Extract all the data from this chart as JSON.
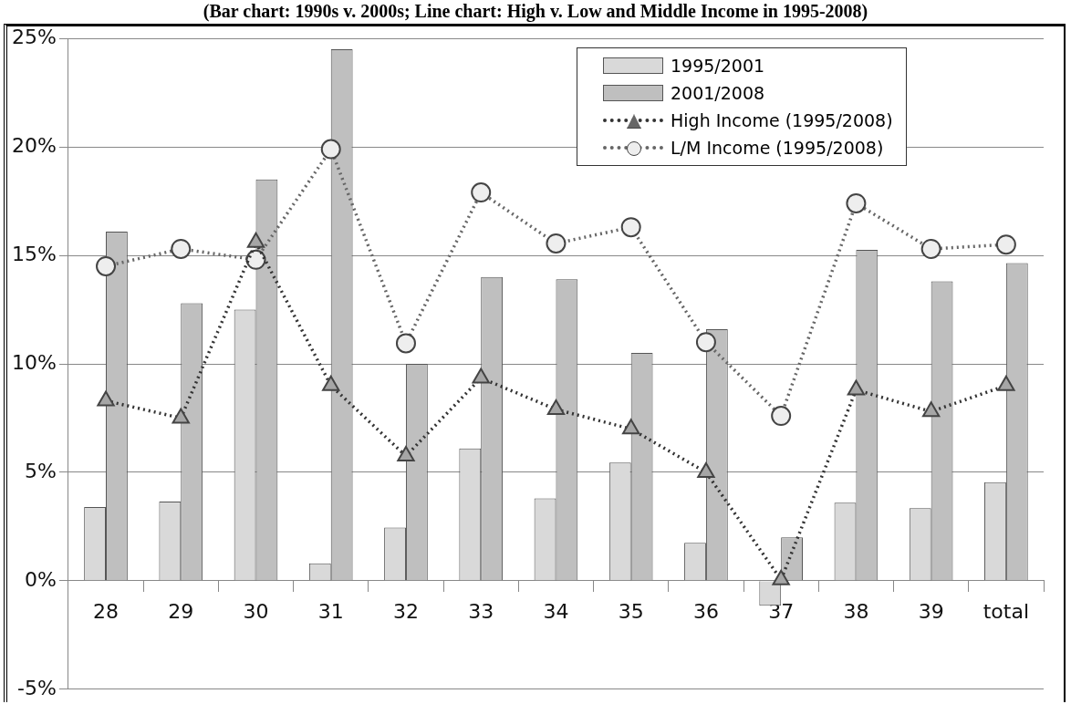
{
  "chart_data": {
    "type": "bar",
    "title": "(Bar chart: 1990s v. 2000s; Line chart: High v. Low and Middle Income in 1995-2008)",
    "categories": [
      "28",
      "29",
      "30",
      "31",
      "32",
      "33",
      "34",
      "35",
      "36",
      "37",
      "38",
      "39",
      "total"
    ],
    "series": [
      {
        "name": "1995/2001",
        "color": "#d9d9d9",
        "values": [
          3.4,
          3.65,
          12.5,
          0.8,
          2.45,
          6.1,
          3.8,
          5.45,
          1.75,
          -1.15,
          3.6,
          3.35,
          4.55
        ]
      },
      {
        "name": "2001/2008",
        "color": "#bfbfbf",
        "values": [
          16.1,
          12.8,
          18.5,
          24.5,
          10.0,
          14.0,
          13.9,
          10.5,
          11.6,
          2.0,
          15.25,
          13.8,
          14.65
        ]
      },
      {
        "name": "High Income (1995/2008)",
        "type": "line",
        "color": "#333333",
        "marker": "triangle",
        "line_style": "dotted",
        "values": [
          8.3,
          7.5,
          15.6,
          9.0,
          5.75,
          9.35,
          7.9,
          7.0,
          5.0,
          0.05,
          8.8,
          7.8,
          9.0
        ]
      },
      {
        "name": "L/M Income (1995/2008)",
        "type": "line",
        "color": "#666666",
        "marker": "circle",
        "line_style": "dotted",
        "values": [
          14.5,
          15.3,
          14.8,
          19.9,
          10.95,
          17.9,
          15.55,
          16.3,
          11.0,
          7.6,
          17.4,
          15.3,
          15.5
        ]
      }
    ],
    "ylim": [
      -5,
      25
    ],
    "yticks": [
      {
        "value": -5,
        "label": "-5%"
      },
      {
        "value": 0,
        "label": "0%"
      },
      {
        "value": 5,
        "label": "5%"
      },
      {
        "value": 10,
        "label": "10%"
      },
      {
        "value": 15,
        "label": "15%"
      },
      {
        "value": 20,
        "label": "20%"
      },
      {
        "value": 25,
        "label": "25%"
      }
    ],
    "grid": "y",
    "legend": "top right"
  }
}
